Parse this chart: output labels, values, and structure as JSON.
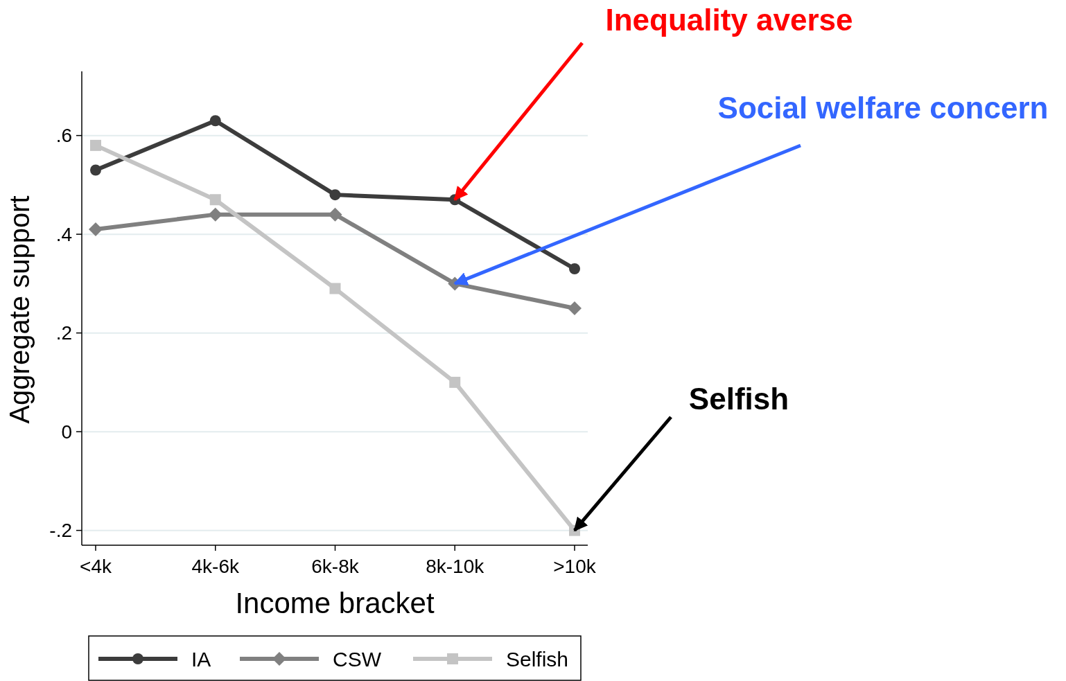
{
  "chart_data": {
    "type": "line",
    "xlabel": "Income bracket",
    "ylabel": "Aggregate support",
    "categories": [
      "<4k",
      "4k-6k",
      "6k-8k",
      "8k-10k",
      ">10k"
    ],
    "series": [
      {
        "name": "IA",
        "color": "#3c3c3c",
        "marker": "circle",
        "values": [
          0.53,
          0.63,
          0.48,
          0.47,
          0.33
        ]
      },
      {
        "name": "CSW",
        "color": "#808080",
        "marker": "diamond",
        "values": [
          0.41,
          0.44,
          0.44,
          0.3,
          0.25
        ]
      },
      {
        "name": "Selfish",
        "color": "#c4c4c4",
        "marker": "square",
        "values": [
          0.58,
          0.47,
          0.29,
          0.1,
          -0.2
        ]
      }
    ],
    "ylim": [
      -0.23,
      0.73
    ],
    "yticks": [
      {
        "value": -0.2,
        "label": "-.2"
      },
      0,
      {
        "value": 0.2,
        "label": ".2"
      },
      {
        "value": 0.4,
        "label": ".4"
      },
      {
        "value": 0.6,
        "label": ".6"
      }
    ],
    "grid": "y",
    "legend": "bottom",
    "line_style": "solid",
    "annotations": [
      {
        "text": "Inequality averse",
        "x": "8k-10k",
        "y": 0.47
      },
      {
        "text": "Social welfare concern",
        "x": "8k-10k",
        "y": 0.3
      },
      {
        "text": "Selfish",
        "x": ">10k",
        "y": -0.2
      }
    ]
  }
}
